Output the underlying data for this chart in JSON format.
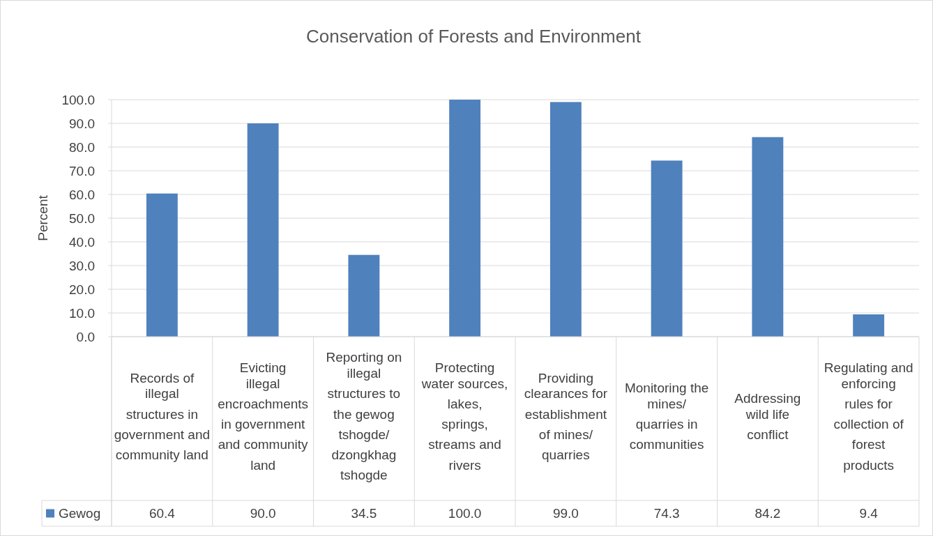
{
  "chart_data": {
    "type": "bar",
    "title": "Conservation of Forests and Environment",
    "ylabel": "Percent",
    "categories": [
      "Records of illegal structures in government and community land",
      "Evicting illegal encroachments in government and community land",
      "Reporting on illegal structures to the gewog tshogde/ dzongkhag tshogde",
      "Protecting water sources, lakes, springs, streams and rivers",
      "Providing clearances for establishment of mines/ quarries",
      "Monitoring the mines/ quarries in communities",
      "Addressing wild life conflict",
      "Regulating and enforcing rules for collection of forest products"
    ],
    "series": [
      {
        "name": "Gewog",
        "color": "#4f81bd",
        "values": [
          60.4,
          90.0,
          34.5,
          100.0,
          99.0,
          74.3,
          84.2,
          9.4
        ],
        "value_labels": [
          "60.4",
          "90.0",
          "34.5",
          "100.0",
          "99.0",
          "74.3",
          "84.2",
          "9.4"
        ]
      }
    ],
    "ylim": [
      0,
      100
    ],
    "yticks": [
      {
        "value": 0,
        "label": "0.0"
      },
      {
        "value": 10,
        "label": "10.0"
      },
      {
        "value": 20,
        "label": "20.0"
      },
      {
        "value": 30,
        "label": "30.0"
      },
      {
        "value": 40,
        "label": "40.0"
      },
      {
        "value": 50,
        "label": "50.0"
      },
      {
        "value": 60,
        "label": "60.0"
      },
      {
        "value": 70,
        "label": "70.0"
      },
      {
        "value": 80,
        "label": "80.0"
      },
      {
        "value": 90,
        "label": "90.0"
      },
      {
        "value": 100,
        "label": "100.0"
      }
    ],
    "grid": "y",
    "legend": "bottom"
  }
}
